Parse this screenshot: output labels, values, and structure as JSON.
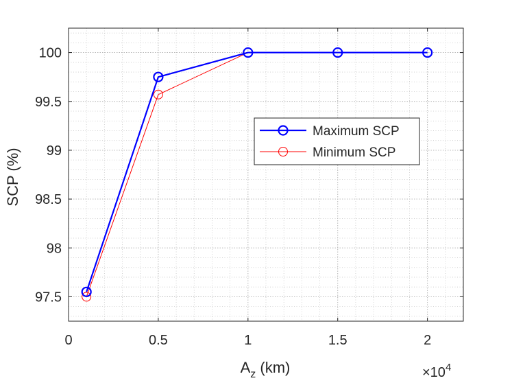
{
  "chart_data": {
    "type": "line",
    "title": "",
    "xlabel_main": "A",
    "xlabel_sub": "z",
    "xlabel_unit": " (km)",
    "ylabel": "SCP (%)",
    "x_exponent_base": "×10",
    "x_exponent_power": "4",
    "xlim": [
      0,
      2.2
    ],
    "ylim": [
      97.25,
      100.25
    ],
    "x_ticks": [
      0,
      0.5,
      1,
      1.5,
      2
    ],
    "x_tick_labels": [
      "0",
      "0.5",
      "1",
      "1.5",
      "2"
    ],
    "y_ticks": [
      97.5,
      98,
      98.5,
      99,
      99.5,
      100
    ],
    "y_tick_labels": [
      "97.5",
      "98",
      "98.5",
      "99",
      "99.5",
      "100"
    ],
    "x_minor_step": 0.1,
    "y_minor_step": 0.1,
    "grid": true,
    "minor_grid": true,
    "legend_position": "center-right",
    "series": [
      {
        "name": "Maximum SCP",
        "color": "#0000ff",
        "marker": "circle",
        "x": [
          0.1,
          0.5,
          1,
          1.5,
          2
        ],
        "y": [
          97.55,
          99.75,
          100,
          100,
          100
        ]
      },
      {
        "name": "Minimum SCP",
        "color": "#ff0000",
        "marker": "circle",
        "x": [
          0.1,
          0.5,
          1,
          1.5,
          2
        ],
        "y": [
          97.5,
          99.57,
          100,
          100,
          100
        ]
      }
    ]
  }
}
